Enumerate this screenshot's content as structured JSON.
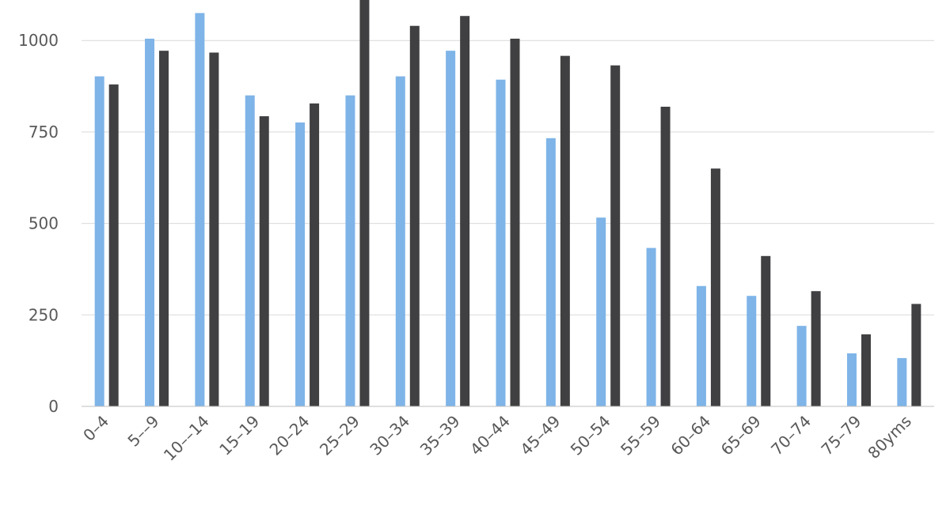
{
  "chart_data": {
    "type": "bar",
    "categories": [
      "0–4",
      "5––9",
      "10––14",
      "15–19",
      "20–24",
      "25–29",
      "30–34",
      "35–39",
      "40–44",
      "45–49",
      "50–54",
      "55–59",
      "60–64",
      "65–69",
      "70–74",
      "75–79",
      "80yms"
    ],
    "series": [
      {
        "color": "#7eb4e8",
        "values": [
          902,
          1005,
          1075,
          850,
          776,
          850,
          902,
          972,
          893,
          733,
          516,
          433,
          329,
          302,
          220,
          145,
          132
        ]
      },
      {
        "color": "#404042",
        "values": [
          880,
          972,
          967,
          793,
          828,
          1140,
          1040,
          1067,
          1005,
          958,
          932,
          819,
          650,
          411,
          315,
          197,
          280
        ]
      }
    ],
    "y_ticks": [
      "0",
      "250",
      "500",
      "750",
      "1000"
    ],
    "ylim": [
      0,
      1115
    ],
    "grid": true,
    "legend": "none"
  }
}
